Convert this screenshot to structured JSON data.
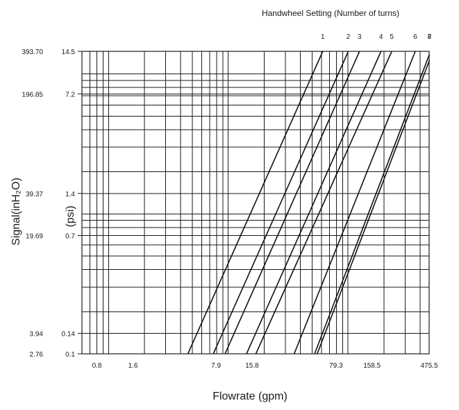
{
  "chart_data": {
    "type": "line",
    "title": "Handwheel Setting (Number of turns)",
    "xlabel": "Flowrate (gpm)",
    "ylabel_left": "Signal(inH₂O)",
    "ylabel_right": "(psi)",
    "x_scale": "log",
    "y_scale": "log",
    "xlim": [
      0.6,
      475.5
    ],
    "ylim_psi": [
      0.1,
      14.5
    ],
    "x_ticks": [
      "0.8",
      "1.6",
      "7.9",
      "15.8",
      "79.3",
      "158.5",
      "475.5"
    ],
    "x_tick_values": [
      0.8,
      1.6,
      7.9,
      15.8,
      79.3,
      158.5,
      475.5
    ],
    "y_ticks_inh2o": [
      "393.70",
      "196.85",
      "39.37",
      "19.69",
      "3.94",
      "2.76"
    ],
    "y_ticks_psi": [
      "14.5",
      "7.2",
      "1.4",
      "0.7",
      "0.14",
      "0.1"
    ],
    "y_tick_values_psi": [
      14.5,
      7.2,
      1.4,
      0.7,
      0.14,
      0.1
    ],
    "grid": true,
    "series": [
      {
        "name": "1",
        "x": [
          4.6,
          61.5
        ],
        "y": [
          0.1,
          14.5
        ]
      },
      {
        "name": "2",
        "x": [
          7.5,
          100.5
        ],
        "y": [
          0.1,
          14.5
        ]
      },
      {
        "name": "3",
        "x": [
          9.4,
          124.7
        ],
        "y": [
          0.1,
          14.5
        ]
      },
      {
        "name": "4",
        "x": [
          14.2,
          188.5
        ],
        "y": [
          0.1,
          14.5
        ]
      },
      {
        "name": "5",
        "x": [
          17.0,
          231.8
        ],
        "y": [
          0.1,
          14.5
        ]
      },
      {
        "name": "6",
        "x": [
          35.5,
          364.3
        ],
        "y": [
          0.1,
          14.5
        ]
      },
      {
        "name": "7",
        "x": [
          52.6,
          478.4
        ],
        "y": [
          0.1,
          13.8
        ]
      },
      {
        "name": "8",
        "x": [
          55.3,
          478.4
        ],
        "y": [
          0.1,
          12.5
        ]
      }
    ],
    "series_color": "#111111",
    "grid_color": "#1a1a1a"
  }
}
